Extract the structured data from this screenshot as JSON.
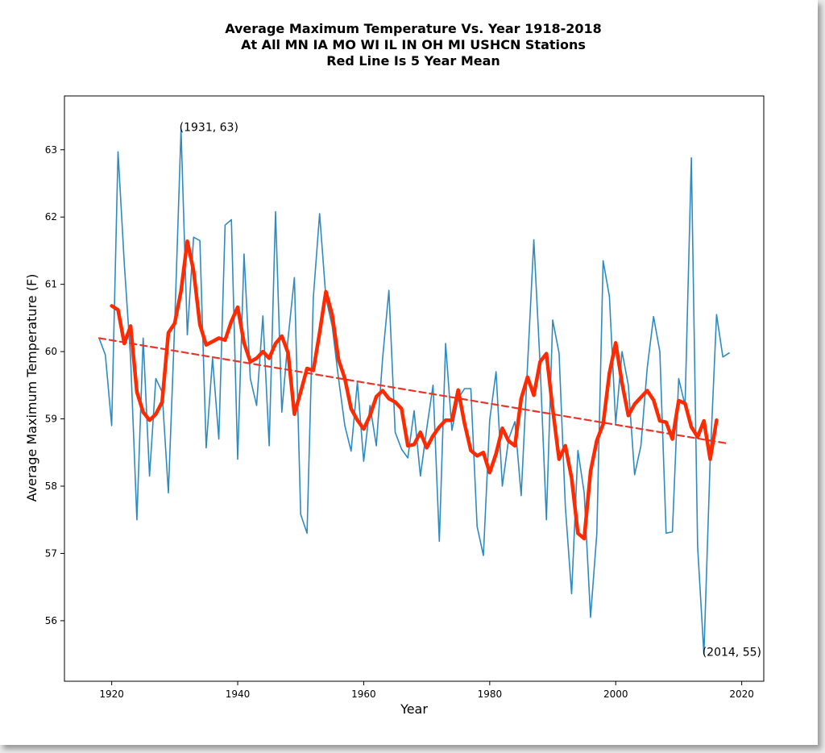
{
  "chart_data": {
    "type": "line",
    "title_lines": [
      "Average Maximum Temperature Vs. Year 1918-2018",
      "At All MN IA MO WI IL IN OH MI USHCN Stations",
      "Red Line Is 5 Year Mean"
    ],
    "xlabel": "Year",
    "ylabel": "Average Maximum Temperature (F)",
    "xlim": [
      1912.5,
      2023.5
    ],
    "ylim": [
      55.1,
      63.8
    ],
    "xticks": [
      1920,
      1940,
      1960,
      1980,
      2000,
      2020
    ],
    "yticks": [
      56,
      57,
      58,
      59,
      60,
      61,
      62,
      63
    ],
    "grid": false,
    "colors": {
      "annual": "#2e8bc0",
      "mean": "#ff2a00",
      "trend": "#e8352a"
    },
    "series": [
      {
        "role": "annual",
        "x": [
          1918,
          1919,
          1920,
          1921,
          1922,
          1923,
          1924,
          1925,
          1926,
          1927,
          1928,
          1929,
          1930,
          1931,
          1932,
          1933,
          1934,
          1935,
          1936,
          1937,
          1938,
          1939,
          1940,
          1941,
          1942,
          1943,
          1944,
          1945,
          1946,
          1947,
          1948,
          1949,
          1950,
          1951,
          1952,
          1953,
          1954,
          1955,
          1956,
          1957,
          1958,
          1959,
          1960,
          1961,
          1962,
          1963,
          1964,
          1965,
          1966,
          1967,
          1968,
          1969,
          1970,
          1971,
          1972,
          1973,
          1974,
          1975,
          1976,
          1977,
          1978,
          1979,
          1980,
          1981,
          1982,
          1983,
          1984,
          1985,
          1986,
          1987,
          1988,
          1989,
          1990,
          1991,
          1992,
          1993,
          1994,
          1995,
          1996,
          1997,
          1998,
          1999,
          2000,
          2001,
          2002,
          2003,
          2004,
          2005,
          2006,
          2007,
          2008,
          2009,
          2010,
          2011,
          2012,
          2013,
          2014,
          2015,
          2016,
          2017,
          2018
        ],
        "y": [
          60.2,
          59.95,
          58.9,
          62.97,
          61.3,
          59.9,
          57.5,
          60.2,
          58.15,
          59.6,
          59.4,
          57.9,
          60.4,
          63.3,
          60.25,
          61.7,
          61.65,
          58.57,
          59.9,
          58.7,
          61.88,
          61.96,
          58.4,
          61.45,
          59.6,
          59.2,
          60.53,
          58.6,
          62.08,
          59.1,
          60.2,
          61.1,
          57.58,
          57.3,
          60.8,
          62.05,
          60.8,
          60.38,
          59.6,
          58.9,
          58.52,
          59.55,
          58.37,
          59.2,
          58.6,
          59.9,
          60.91,
          58.8,
          58.55,
          58.42,
          59.12,
          58.15,
          58.85,
          59.5,
          57.18,
          60.12,
          58.83,
          59.3,
          59.45,
          59.45,
          57.4,
          56.97,
          58.98,
          59.7,
          58.0,
          58.7,
          58.96,
          57.86,
          59.8,
          61.66,
          59.8,
          57.5,
          60.47,
          59.98,
          57.7,
          56.4,
          58.53,
          57.9,
          56.05,
          57.3,
          61.35,
          60.82,
          58.93,
          60.0,
          59.5,
          58.17,
          58.6,
          59.75,
          60.52,
          60.0,
          57.3,
          57.32,
          59.6,
          59.2,
          62.88,
          57.1,
          55.5,
          58.4,
          60.55,
          59.92,
          59.98
        ]
      },
      {
        "role": "mean",
        "x": [
          1920,
          1921,
          1922,
          1923,
          1924,
          1925,
          1926,
          1927,
          1928,
          1929,
          1930,
          1931,
          1932,
          1933,
          1934,
          1935,
          1936,
          1937,
          1938,
          1939,
          1940,
          1941,
          1942,
          1943,
          1944,
          1945,
          1946,
          1947,
          1948,
          1949,
          1950,
          1951,
          1952,
          1953,
          1954,
          1955,
          1956,
          1957,
          1958,
          1959,
          1960,
          1961,
          1962,
          1963,
          1964,
          1965,
          1966,
          1967,
          1968,
          1969,
          1970,
          1971,
          1972,
          1973,
          1974,
          1975,
          1976,
          1977,
          1978,
          1979,
          1980,
          1981,
          1982,
          1983,
          1984,
          1985,
          1986,
          1987,
          1988,
          1989,
          1990,
          1991,
          1992,
          1993,
          1994,
          1995,
          1996,
          1997,
          1998,
          1999,
          2000,
          2001,
          2002,
          2003,
          2004,
          2005,
          2006,
          2007,
          2008,
          2009,
          2010,
          2011,
          2012,
          2013,
          2014,
          2015,
          2016
        ],
        "y": [
          60.68,
          60.62,
          60.12,
          60.38,
          59.4,
          59.1,
          58.98,
          59.07,
          59.25,
          60.28,
          60.42,
          60.9,
          61.64,
          61.2,
          60.4,
          60.1,
          60.15,
          60.2,
          60.17,
          60.45,
          60.66,
          60.13,
          59.85,
          59.9,
          60.0,
          59.9,
          60.12,
          60.23,
          59.98,
          59.07,
          59.4,
          59.75,
          59.72,
          60.28,
          60.89,
          60.55,
          59.88,
          59.6,
          59.15,
          58.98,
          58.85,
          59.05,
          59.33,
          59.42,
          59.3,
          59.25,
          59.15,
          58.6,
          58.62,
          58.8,
          58.57,
          58.75,
          58.88,
          58.98,
          58.98,
          59.43,
          58.93,
          58.53,
          58.45,
          58.5,
          58.2,
          58.48,
          58.86,
          58.67,
          58.6,
          59.3,
          59.62,
          59.35,
          59.85,
          59.97,
          59.15,
          58.4,
          58.6,
          58.12,
          57.3,
          57.22,
          58.22,
          58.68,
          58.92,
          59.68,
          60.13,
          59.53,
          59.05,
          59.22,
          59.32,
          59.42,
          59.28,
          58.97,
          58.95,
          58.7,
          59.27,
          59.23,
          58.88,
          58.73,
          58.97,
          58.4,
          58.98
        ]
      },
      {
        "role": "trend",
        "x": [
          1918,
          2018
        ],
        "y": [
          60.2,
          58.63
        ]
      }
    ],
    "annotations": [
      {
        "text": "(1931, 63)",
        "x": 1931,
        "y": 63.3
      },
      {
        "text": "(2014, 55)",
        "x": 2014,
        "y": 55.5
      }
    ]
  }
}
